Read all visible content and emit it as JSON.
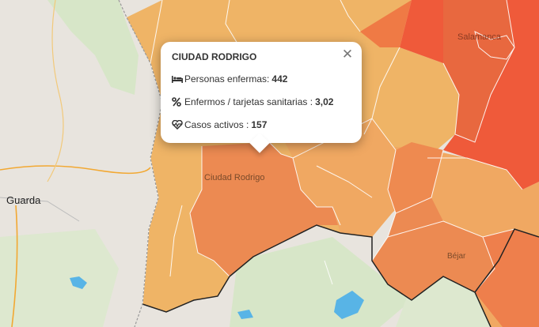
{
  "map": {
    "place_labels": {
      "guarda": "Guarda",
      "ciudad_rodrigo": "Ciudad Rodrigo",
      "bejar": "Béjar",
      "salamanca": "Salamanca"
    },
    "colors": {
      "region_light": "#efb466",
      "region_mid": "#f0a862",
      "region_orange": "#ec8a52",
      "region_dark": "#e8683f",
      "region_red": "#ef5a3a",
      "border_white": "#ffffff",
      "border_dark": "#222222",
      "basemap": "#e8e4de",
      "water": "#58b4e6",
      "road": "#f2a832"
    }
  },
  "popup": {
    "title": "CIUDAD RODRIGO",
    "close_icon": "close-icon",
    "rows": [
      {
        "icon": "bed-icon",
        "label": "Personas enfermas:",
        "value": "442"
      },
      {
        "icon": "percent-icon",
        "label": "Enfermos / tarjetas sanitarias :",
        "value": "3,02"
      },
      {
        "icon": "heartbeat-icon",
        "label": "Casos activos :",
        "value": "157"
      }
    ]
  }
}
